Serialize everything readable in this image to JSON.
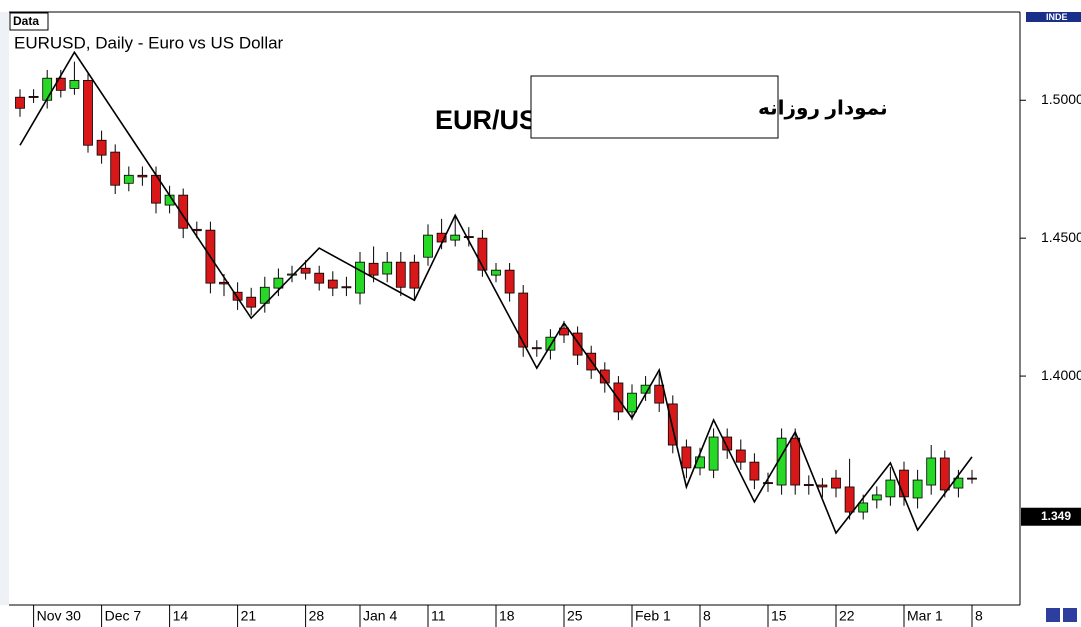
{
  "chart_data": {
    "type": "candlestick",
    "badge": "Data",
    "symbol_title": "EURUSD, Daily - Euro vs US Dollar",
    "title": "EUR/USD",
    "annotation": "نمودار روزانه",
    "indicator_label": "INDE",
    "categories": [
      null,
      "Nov 30",
      null,
      null,
      null,
      null,
      "Dec 7",
      null,
      null,
      null,
      null,
      "14",
      null,
      null,
      null,
      null,
      "21",
      null,
      null,
      null,
      null,
      "28",
      null,
      null,
      null,
      "Jan 4",
      null,
      null,
      null,
      null,
      "11",
      null,
      null,
      null,
      null,
      "18",
      null,
      null,
      null,
      null,
      "25",
      null,
      null,
      null,
      null,
      "Feb 1",
      null,
      null,
      null,
      null,
      "8",
      null,
      null,
      null,
      null,
      "15",
      null,
      null,
      null,
      null,
      "22",
      null,
      null,
      null,
      null,
      "Mar 1",
      null,
      null,
      null,
      null,
      "8"
    ],
    "open": [
      1.5011,
      1.5014,
      1.5,
      1.508,
      1.5043,
      1.5072,
      1.4855,
      1.4812,
      1.4699,
      1.4728,
      1.4728,
      1.462,
      1.4656,
      1.4532,
      1.4529,
      1.434,
      1.4304,
      1.4286,
      1.4264,
      1.4319,
      1.4366,
      1.4391,
      1.4373,
      1.4348,
      1.4324,
      1.4301,
      1.4409,
      1.437,
      1.4413,
      1.4413,
      1.4431,
      1.4518,
      1.4493,
      1.4506,
      1.45,
      1.4366,
      1.4384,
      1.4301,
      1.4103,
      1.4094,
      1.4174,
      1.4156,
      1.4083,
      1.4022,
      1.3975,
      1.387,
      1.3938,
      1.3967,
      1.3899,
      1.3743,
      1.3667,
      1.3659,
      1.3779,
      1.3732,
      1.3688,
      1.3614,
      1.3605,
      1.3775,
      1.3607,
      1.3605,
      1.363,
      1.3598,
      1.3507,
      1.3551,
      1.3562,
      1.3659,
      1.3558,
      1.3605,
      1.3703,
      1.3594,
      1.363
    ],
    "high": [
      1.504,
      1.504,
      1.511,
      1.511,
      1.514,
      1.51,
      1.489,
      1.484,
      1.476,
      1.476,
      1.476,
      1.469,
      1.468,
      1.456,
      1.456,
      1.437,
      1.434,
      1.432,
      1.436,
      1.439,
      1.44,
      1.442,
      1.44,
      1.438,
      1.436,
      1.445,
      1.447,
      1.445,
      1.445,
      1.444,
      1.455,
      1.457,
      1.458,
      1.454,
      1.453,
      1.441,
      1.441,
      1.433,
      1.413,
      1.417,
      1.42,
      1.418,
      1.411,
      1.405,
      1.4,
      1.397,
      1.4,
      1.401,
      1.393,
      1.377,
      1.374,
      1.381,
      1.381,
      1.377,
      1.372,
      1.365,
      1.381,
      1.381,
      1.364,
      1.363,
      1.366,
      1.37,
      1.357,
      1.36,
      1.367,
      1.369,
      1.366,
      1.375,
      1.373,
      1.366,
      1.366
    ],
    "low": [
      1.494,
      1.499,
      1.497,
      1.501,
      1.502,
      1.481,
      1.477,
      1.466,
      1.467,
      1.469,
      1.459,
      1.459,
      1.45,
      1.45,
      1.43,
      1.429,
      1.424,
      1.422,
      1.423,
      1.429,
      1.434,
      1.435,
      1.431,
      1.429,
      1.429,
      1.426,
      1.434,
      1.434,
      1.429,
      1.428,
      1.44,
      1.446,
      1.447,
      1.447,
      1.436,
      1.434,
      1.427,
      1.407,
      1.407,
      1.406,
      1.412,
      1.404,
      1.399,
      1.394,
      1.384,
      1.384,
      1.391,
      1.387,
      1.372,
      1.363,
      1.364,
      1.363,
      1.37,
      1.366,
      1.359,
      1.358,
      1.357,
      1.357,
      1.357,
      1.356,
      1.356,
      1.348,
      1.348,
      1.352,
      1.353,
      1.353,
      1.352,
      1.357,
      1.356,
      1.356,
      1.361
    ],
    "close": [
      1.4971,
      1.501,
      1.508,
      1.5036,
      1.5072,
      1.4837,
      1.4801,
      1.4692,
      1.4728,
      1.4722,
      1.4627,
      1.4656,
      1.4536,
      1.4527,
      1.4337,
      1.4334,
      1.4275,
      1.425,
      1.4322,
      1.4355,
      1.437,
      1.4373,
      1.4337,
      1.4319,
      1.432,
      1.4413,
      1.4366,
      1.4413,
      1.4322,
      1.4319,
      1.4511,
      1.4486,
      1.4511,
      1.4502,
      1.4384,
      1.4384,
      1.4301,
      1.4105,
      1.4099,
      1.4141,
      1.4149,
      1.4076,
      1.4022,
      1.3975,
      1.387,
      1.3938,
      1.3967,
      1.3902,
      1.375,
      1.3667,
      1.3707,
      1.3779,
      1.3732,
      1.3688,
      1.3623,
      1.361,
      1.3775,
      1.3605,
      1.3603,
      1.3598,
      1.3594,
      1.3507,
      1.354,
      1.3569,
      1.3623,
      1.3562,
      1.3623,
      1.3703,
      1.3587,
      1.363,
      1.3628
    ],
    "up_color": "#27d827",
    "down_color": "#d81818",
    "zigzag": {
      "color": "#000000",
      "x": [
        0,
        4,
        17,
        22,
        29,
        32,
        38,
        40,
        45,
        47,
        49,
        51,
        54,
        57,
        60,
        64,
        66,
        70
      ],
      "values": [
        1.4837,
        1.5174,
        1.421,
        1.4464,
        1.4275,
        1.4583,
        1.4029,
        1.4192,
        1.3848,
        1.4022,
        1.3598,
        1.3841,
        1.3544,
        1.3797,
        1.3431,
        1.3685,
        1.3442,
        1.3707
      ]
    },
    "ylim": [
      1.317,
      1.532
    ],
    "yticks": [
      {
        "value": 1.5,
        "label": "1.5000"
      },
      {
        "value": 1.45,
        "label": "1.4500"
      },
      {
        "value": 1.4,
        "label": "1.4000"
      }
    ],
    "current_price": 1.349
  }
}
